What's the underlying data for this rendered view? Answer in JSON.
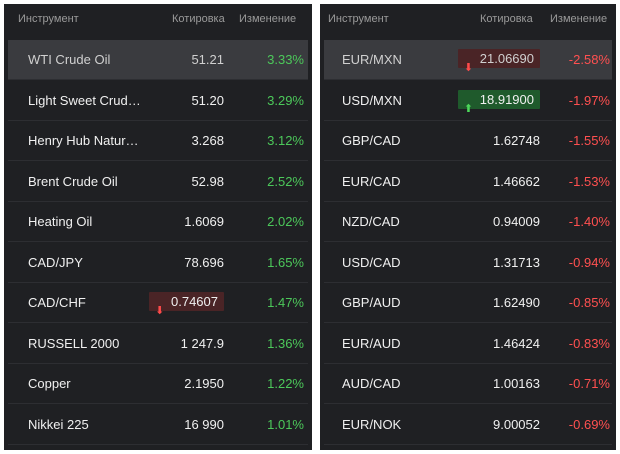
{
  "left": {
    "header": {
      "instrument": "Инструмент",
      "quote": "Котировка",
      "change": "Изменение"
    },
    "rows": [
      {
        "name": "WTI Crude Oil",
        "quote": "51.21",
        "change": "3.33%",
        "dir": "pos",
        "selected": true
      },
      {
        "name": "Light Sweet Crud…",
        "quote": "51.20",
        "change": "3.29%",
        "dir": "pos"
      },
      {
        "name": "Henry Hub Natur…",
        "quote": "3.268",
        "change": "3.12%",
        "dir": "pos"
      },
      {
        "name": "Brent Crude Oil",
        "quote": "52.98",
        "change": "2.52%",
        "dir": "pos"
      },
      {
        "name": "Heating Oil",
        "quote": "1.6069",
        "change": "2.02%",
        "dir": "pos"
      },
      {
        "name": "CAD/JPY",
        "quote": "78.696",
        "change": "1.65%",
        "dir": "pos"
      },
      {
        "name": "CAD/CHF",
        "quote": "0.74607",
        "change": "1.47%",
        "dir": "pos",
        "flash": "down"
      },
      {
        "name": "RUSSELL 2000",
        "quote": "1 247.9",
        "change": "1.36%",
        "dir": "pos"
      },
      {
        "name": "Copper",
        "quote": "2.1950",
        "change": "1.22%",
        "dir": "pos"
      },
      {
        "name": "Nikkei 225",
        "quote": "16 990",
        "change": "1.01%",
        "dir": "pos"
      }
    ]
  },
  "right": {
    "header": {
      "instrument": "Инструмент",
      "quote": "Котировка",
      "change": "Изменение"
    },
    "rows": [
      {
        "name": "EUR/MXN",
        "quote": "21.06690",
        "change": "-2.58%",
        "dir": "neg",
        "selected": true,
        "flash": "down"
      },
      {
        "name": "USD/MXN",
        "quote": "18.91900",
        "change": "-1.97%",
        "dir": "neg",
        "flash": "up"
      },
      {
        "name": "GBP/CAD",
        "quote": "1.62748",
        "change": "-1.55%",
        "dir": "neg"
      },
      {
        "name": "EUR/CAD",
        "quote": "1.46662",
        "change": "-1.53%",
        "dir": "neg"
      },
      {
        "name": "NZD/CAD",
        "quote": "0.94009",
        "change": "-1.40%",
        "dir": "neg"
      },
      {
        "name": "USD/CAD",
        "quote": "1.31713",
        "change": "-0.94%",
        "dir": "neg"
      },
      {
        "name": "GBP/AUD",
        "quote": "1.62490",
        "change": "-0.85%",
        "dir": "neg"
      },
      {
        "name": "EUR/AUD",
        "quote": "1.46424",
        "change": "-0.83%",
        "dir": "neg"
      },
      {
        "name": "AUD/CAD",
        "quote": "1.00163",
        "change": "-0.71%",
        "dir": "neg"
      },
      {
        "name": "EUR/NOK",
        "quote": "9.00052",
        "change": "-0.69%",
        "dir": "neg"
      }
    ]
  },
  "icons": {
    "down": "arrow-down-icon",
    "up": "arrow-up-icon"
  },
  "colors": {
    "background": "#1f2023",
    "selected": "#3a3b3f",
    "positive": "#4cc85a",
    "negative": "#ff5050",
    "flash_down": "#4a2426",
    "flash_up": "#1f5a2c"
  }
}
